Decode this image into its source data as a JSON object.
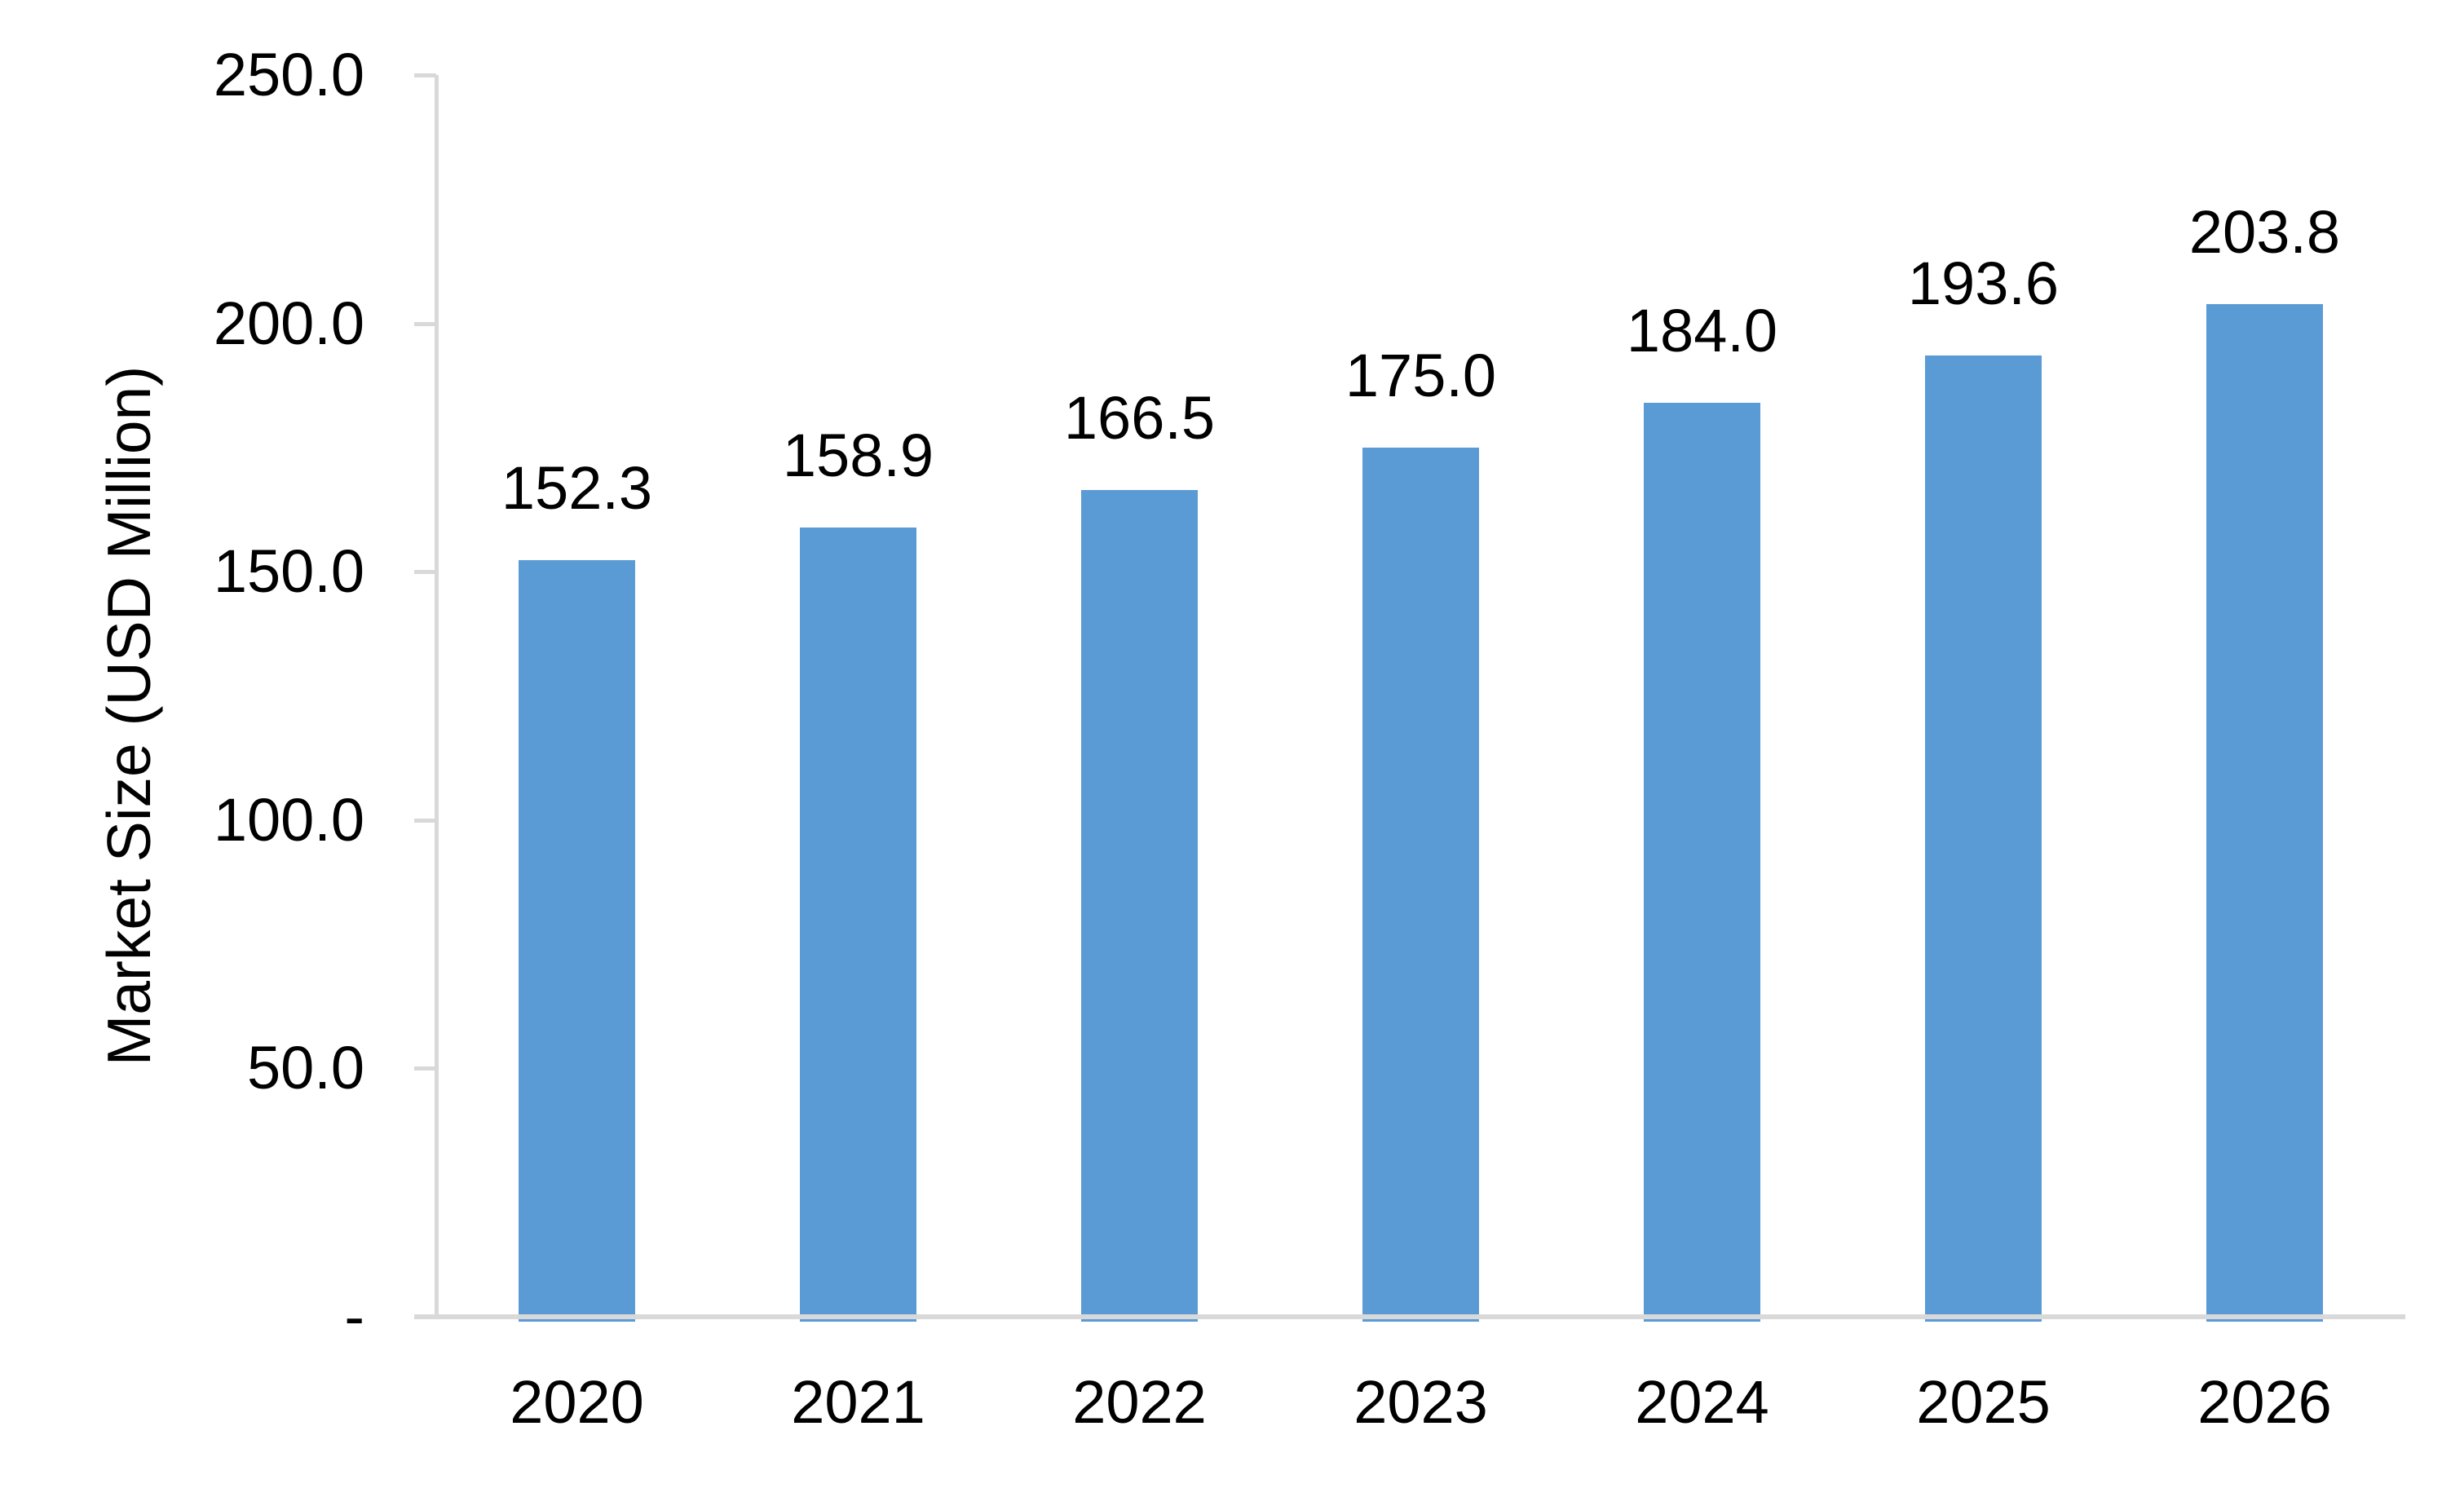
{
  "chart_data": {
    "type": "bar",
    "title": "",
    "ylabel": "Market Size (USD Million)",
    "xlabel": "",
    "categories": [
      "2020",
      "2021",
      "2022",
      "2023",
      "2024",
      "2025",
      "2026"
    ],
    "values": [
      152.3,
      158.9,
      166.5,
      175.0,
      184.0,
      193.6,
      203.8
    ],
    "value_labels": [
      "152.3",
      "158.9",
      "166.5",
      "175.0",
      "184.0",
      "193.6",
      "203.8"
    ],
    "ylim": [
      0,
      250
    ],
    "ytick_values": [
      250,
      200,
      150,
      100,
      50,
      0
    ],
    "ytick_labels": [
      "250.0",
      "200.0",
      "150.0",
      "100.0",
      "50.0",
      "-"
    ],
    "grid": false,
    "legend": "none",
    "bar_color": "#5B9BD5",
    "axis_color": "#D9D9D9",
    "text_color": "#000000",
    "background": "#FFFFFF"
  }
}
